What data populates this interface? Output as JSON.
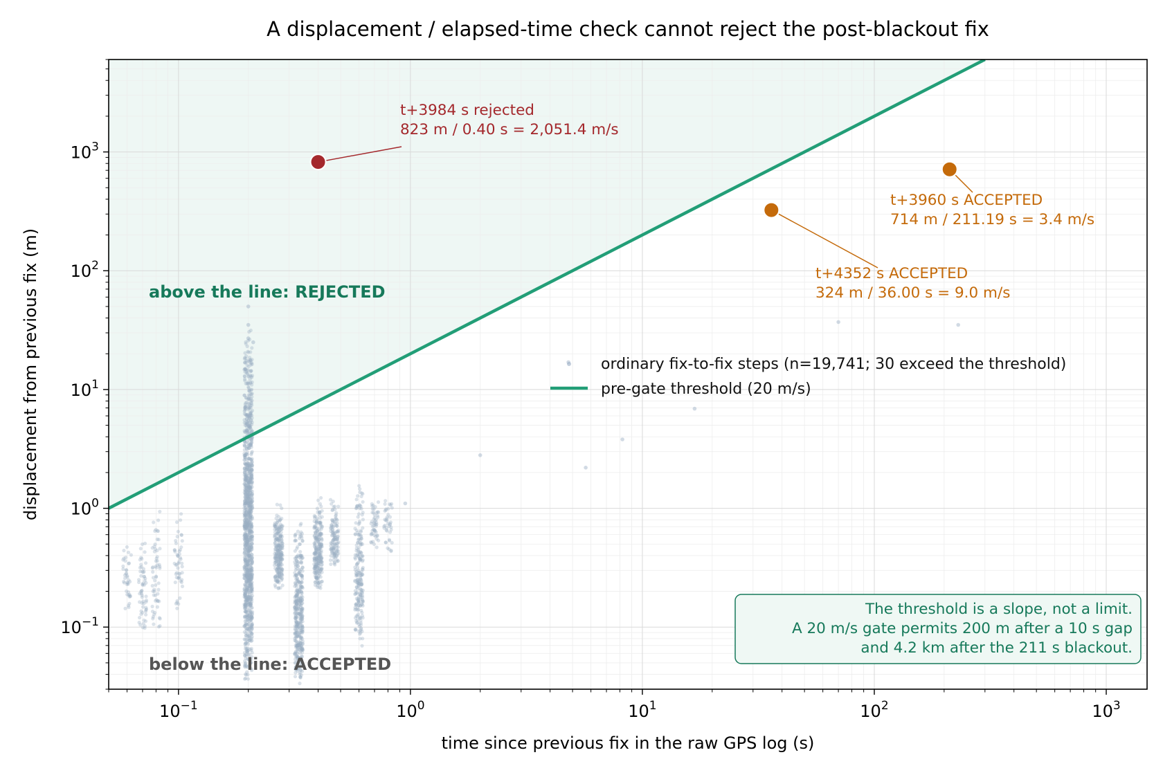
{
  "chart_data": {
    "type": "scatter",
    "title": "A displacement / elapsed-time check cannot reject the post-blackout fix",
    "xlabel": "time since previous fix in the raw GPS log (s)",
    "ylabel": "displacement from previous fix (m)",
    "x_scale": "log",
    "y_scale": "log",
    "xlim": [
      0.05,
      1500
    ],
    "ylim": [
      0.03,
      6000
    ],
    "x_ticks": [
      {
        "value": 0.1,
        "base": "10",
        "exp": "−1"
      },
      {
        "value": 1,
        "base": "10",
        "exp": "0"
      },
      {
        "value": 10,
        "base": "10",
        "exp": "1"
      },
      {
        "value": 100,
        "base": "10",
        "exp": "2"
      },
      {
        "value": 1000,
        "base": "10",
        "exp": "3"
      }
    ],
    "y_ticks": [
      {
        "value": 0.1,
        "base": "10",
        "exp": "−1"
      },
      {
        "value": 1,
        "base": "10",
        "exp": "0"
      },
      {
        "value": 10,
        "base": "10",
        "exp": "1"
      },
      {
        "value": 100,
        "base": "10",
        "exp": "2"
      },
      {
        "value": 1000,
        "base": "10",
        "exp": "3"
      }
    ],
    "grid": true,
    "threshold_speed": 20,
    "legend": {
      "placement": "center-right",
      "entries": [
        {
          "label": "ordinary fix-to-fix steps (n=19,741; 30 exceed the threshold)",
          "kind": "marker",
          "color": "#9aaec4"
        },
        {
          "label": "pre-gate threshold (20 m/s)",
          "kind": "line",
          "color": "#229e77"
        }
      ]
    },
    "regions": {
      "above": {
        "label": "above the line: REJECTED",
        "color": "#16795a"
      },
      "below": {
        "label": "below the line: ACCEPTED",
        "color": "#555555"
      }
    },
    "highlight_points": [
      {
        "x": 0.4,
        "y": 823,
        "color": "#a4282c",
        "line1": "t+3984 s   rejected",
        "line2": "823 m / 0.40 s = 2,051.4 m/s"
      },
      {
        "x": 211.19,
        "y": 714,
        "color": "#c46a0a",
        "line1": "t+3960 s   ACCEPTED",
        "line2": "714 m / 211.19 s = 3.4 m/s"
      },
      {
        "x": 36.0,
        "y": 324,
        "color": "#c46a0a",
        "line1": "t+4352 s   ACCEPTED",
        "line2": "324 m / 36.00 s = 9.0 m/s"
      }
    ],
    "background_points_color": "#9aaec4",
    "background_clusters": [
      {
        "x": 0.06,
        "y_min": 0.12,
        "y_max": 0.6,
        "count": 40
      },
      {
        "x": 0.07,
        "y_min": 0.08,
        "y_max": 0.7,
        "count": 60
      },
      {
        "x": 0.08,
        "y_min": 0.09,
        "y_max": 1.2,
        "count": 60
      },
      {
        "x": 0.1,
        "y_min": 0.12,
        "y_max": 1.1,
        "count": 50
      },
      {
        "x": 0.2,
        "y_min": 0.03,
        "y_max": 50,
        "count": 1200
      },
      {
        "x": 0.27,
        "y_min": 0.2,
        "y_max": 1.2,
        "count": 250
      },
      {
        "x": 0.33,
        "y_min": 0.03,
        "y_max": 1.0,
        "count": 400
      },
      {
        "x": 0.4,
        "y_min": 0.2,
        "y_max": 1.4,
        "count": 250
      },
      {
        "x": 0.47,
        "y_min": 0.3,
        "y_max": 1.3,
        "count": 120
      },
      {
        "x": 0.6,
        "y_min": 0.06,
        "y_max": 2.0,
        "count": 220
      },
      {
        "x": 0.7,
        "y_min": 0.4,
        "y_max": 1.5,
        "count": 50
      },
      {
        "x": 0.8,
        "y_min": 0.4,
        "y_max": 1.6,
        "count": 40
      }
    ],
    "background_outliers": [
      {
        "x": 2.0,
        "y": 2.8
      },
      {
        "x": 4.8,
        "y": 17
      },
      {
        "x": 5.7,
        "y": 2.2
      },
      {
        "x": 8.2,
        "y": 3.8
      },
      {
        "x": 16.8,
        "y": 6.9
      },
      {
        "x": 70,
        "y": 37
      },
      {
        "x": 230,
        "y": 35
      },
      {
        "x": 0.2,
        "y": 27
      },
      {
        "x": 0.21,
        "y": 25
      },
      {
        "x": 0.2,
        "y": 35
      },
      {
        "x": 0.2,
        "y": 50
      },
      {
        "x": 0.95,
        "y": 1.1
      }
    ],
    "note": {
      "lines": [
        "The threshold is a slope, not a limit.",
        "A 20 m/s gate permits 200 m after a 10 s gap",
        "and 4.2 km after the 211 s blackout."
      ],
      "color": "#16795a"
    }
  }
}
